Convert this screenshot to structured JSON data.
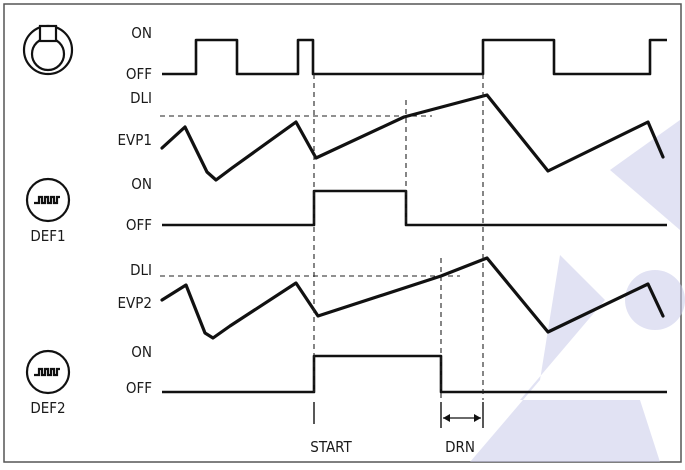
{
  "compressor": {
    "icon": "compressor-icon",
    "on_label": "ON",
    "off_label": "OFF"
  },
  "evap1": {
    "dli_label": "DLI",
    "probe_label": "EVP1"
  },
  "def1": {
    "icon": "defrost-heater-icon",
    "name": "DEF1",
    "on_label": "ON",
    "off_label": "OFF"
  },
  "evap2": {
    "dli_label": "DLI",
    "probe_label": "EVP2"
  },
  "def2": {
    "icon": "defrost-heater-icon",
    "name": "DEF2",
    "on_label": "ON",
    "off_label": "OFF"
  },
  "markers": {
    "start": "START",
    "drain": "DRN"
  },
  "colors": {
    "line": "#111111",
    "watermark": "#c9cbe9"
  }
}
